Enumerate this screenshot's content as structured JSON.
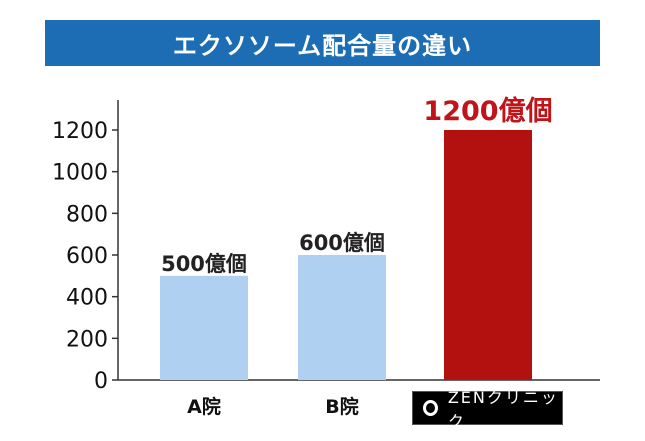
{
  "chart_data": {
    "type": "bar",
    "title": "エクソソーム配合量の違い",
    "categories": [
      "A院",
      "B院",
      "ZENクリニック"
    ],
    "values": [
      500,
      600,
      1200
    ],
    "data_labels": [
      "500億個",
      "600億個",
      "1200億個"
    ],
    "colors": [
      "#afd0f0",
      "#afd0f0",
      "#b3110f"
    ],
    "label_colors": [
      "#222222",
      "#222222",
      "#c0141a"
    ],
    "yticks": [
      0,
      200,
      400,
      600,
      800,
      1000,
      1200
    ],
    "ylim": [
      0,
      1200
    ],
    "xlabel": "",
    "ylabel": "",
    "grid": false
  }
}
